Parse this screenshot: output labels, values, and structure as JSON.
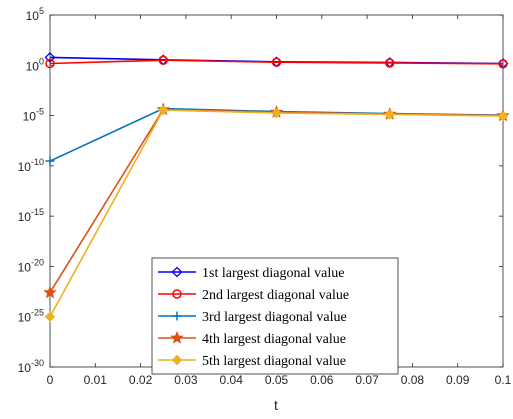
{
  "chart_data": {
    "type": "line",
    "title": "",
    "xlabel": "t",
    "ylabel": "",
    "yscale": "log",
    "xlim": [
      0,
      0.1
    ],
    "ylim": [
      1e-30,
      100000.0
    ],
    "grid": false,
    "legend_position": "bottom-right",
    "x": [
      0,
      0.025,
      0.05,
      0.075,
      0.1
    ],
    "x_ticks": [
      0,
      0.01,
      0.02,
      0.03,
      0.04,
      0.05,
      0.06,
      0.07,
      0.08,
      0.09,
      0.1
    ],
    "x_tick_labels": [
      "0",
      "0.01",
      "0.02",
      "0.03",
      "0.04",
      "0.05",
      "0.06",
      "0.07",
      "0.08",
      "0.09",
      "0.1"
    ],
    "y_tick_exponents": [
      5,
      0,
      -5,
      -10,
      -15,
      -20,
      -25,
      -30
    ],
    "series": [
      {
        "name": "1st largest diagonal value",
        "color": "#0000FF",
        "marker": "diamond",
        "values": [
          6.0,
          3.5,
          2.2,
          1.9,
          1.5
        ]
      },
      {
        "name": "2nd largest diagonal value",
        "color": "#FF0000",
        "marker": "circle",
        "values": [
          1.5,
          3.2,
          2.0,
          1.7,
          1.4
        ]
      },
      {
        "name": "3rd largest diagonal value",
        "color": "#0072BD",
        "marker": "plus",
        "values": [
          3e-10,
          5e-05,
          2.5e-05,
          1.6e-05,
          1.1e-05
        ]
      },
      {
        "name": "4th largest diagonal value",
        "color": "#D95319",
        "marker": "star",
        "values": [
          2.5e-23,
          4e-05,
          2.2e-05,
          1.4e-05,
          1e-05
        ]
      },
      {
        "name": "5th largest diagonal value",
        "color": "#EDB120",
        "marker": "filled-diamond",
        "values": [
          1e-25,
          3.5e-05,
          1.8e-05,
          1.3e-05,
          9e-06
        ]
      }
    ]
  }
}
